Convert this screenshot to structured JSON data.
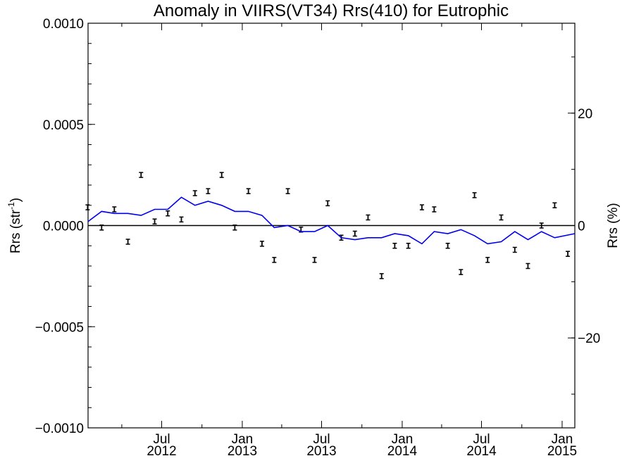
{
  "chart_data": {
    "type": "scatter",
    "title": "Anomaly in VIIRS(VT34) Rrs(410) for Eutrophic",
    "ylabel_left_prefix": "Rrs (str",
    "ylabel_left_exponent": "-1",
    "ylabel_left_suffix": ")",
    "ylabel_right": "Rrs (%)",
    "ylim_left": [
      -0.001,
      0.001
    ],
    "ylim_right": [
      -36,
      36
    ],
    "yticks_left": [
      {
        "value": 0.001,
        "label": "0.0010"
      },
      {
        "value": 0.0005,
        "label": "0.0005"
      },
      {
        "value": 0.0,
        "label": "0.0000"
      },
      {
        "value": -0.0005,
        "label": "−0.0005"
      },
      {
        "value": -0.001,
        "label": "−0.0010"
      }
    ],
    "yticks_right": [
      {
        "value": 20,
        "label": "20"
      },
      {
        "value": 0,
        "label": "0"
      },
      {
        "value": -20,
        "label": "−20"
      }
    ],
    "xlim": [
      "2012-01-15",
      "2015-01-30"
    ],
    "xticks": [
      {
        "date": "2012-07-01",
        "month": "Jul",
        "year": "2012"
      },
      {
        "date": "2013-01-01",
        "month": "Jan",
        "year": "2013"
      },
      {
        "date": "2013-07-01",
        "month": "Jul",
        "year": "2013"
      },
      {
        "date": "2014-01-01",
        "month": "Jan",
        "year": "2014"
      },
      {
        "date": "2014-07-01",
        "month": "Jul",
        "year": "2014"
      },
      {
        "date": "2015-01-01",
        "month": "Jan",
        "year": "2015"
      }
    ],
    "series": [
      {
        "style": "errorbar",
        "color": "#000000",
        "points": [
          {
            "x": "2012-01-14",
            "y": 9e-05
          },
          {
            "x": "2012-02-15",
            "y": -1e-05
          },
          {
            "x": "2012-03-15",
            "y": 8e-05
          },
          {
            "x": "2012-04-15",
            "y": -8e-05
          },
          {
            "x": "2012-05-15",
            "y": 0.00025
          },
          {
            "x": "2012-06-15",
            "y": 2e-05
          },
          {
            "x": "2012-07-15",
            "y": 6e-05
          },
          {
            "x": "2012-08-15",
            "y": 3e-05
          },
          {
            "x": "2012-09-15",
            "y": 0.00016
          },
          {
            "x": "2012-10-15",
            "y": 0.00017
          },
          {
            "x": "2012-11-15",
            "y": 0.00025
          },
          {
            "x": "2012-12-15",
            "y": -1e-05
          },
          {
            "x": "2013-01-15",
            "y": 0.00017
          },
          {
            "x": "2013-02-15",
            "y": -9e-05
          },
          {
            "x": "2013-03-15",
            "y": -0.00017
          },
          {
            "x": "2013-04-15",
            "y": 0.00017
          },
          {
            "x": "2013-05-15",
            "y": -2e-05
          },
          {
            "x": "2013-06-15",
            "y": -0.00017
          },
          {
            "x": "2013-07-15",
            "y": 0.00011
          },
          {
            "x": "2013-08-15",
            "y": -6e-05
          },
          {
            "x": "2013-09-15",
            "y": -4e-05
          },
          {
            "x": "2013-10-15",
            "y": 4e-05
          },
          {
            "x": "2013-11-15",
            "y": -0.00025
          },
          {
            "x": "2013-12-15",
            "y": -0.0001
          },
          {
            "x": "2014-01-15",
            "y": -0.0001
          },
          {
            "x": "2014-02-15",
            "y": 9e-05
          },
          {
            "x": "2014-03-15",
            "y": 8e-05
          },
          {
            "x": "2014-04-15",
            "y": -0.0001
          },
          {
            "x": "2014-05-15",
            "y": -0.00023
          },
          {
            "x": "2014-06-15",
            "y": 0.00015
          },
          {
            "x": "2014-07-15",
            "y": -0.00017
          },
          {
            "x": "2014-08-15",
            "y": 4e-05
          },
          {
            "x": "2014-09-15",
            "y": -0.00012
          },
          {
            "x": "2014-10-15",
            "y": -0.0002
          },
          {
            "x": "2014-11-15",
            "y": 0.0
          },
          {
            "x": "2014-12-15",
            "y": 0.0001
          },
          {
            "x": "2015-01-14",
            "y": -0.00014
          }
        ]
      },
      {
        "style": "line",
        "color": "#0000ee",
        "points": [
          {
            "x": "2012-01-15",
            "y": 2e-05
          },
          {
            "x": "2012-02-15",
            "y": 7e-05
          },
          {
            "x": "2012-03-15",
            "y": 6e-05
          },
          {
            "x": "2012-04-15",
            "y": 6e-05
          },
          {
            "x": "2012-05-15",
            "y": 5e-05
          },
          {
            "x": "2012-06-15",
            "y": 8e-05
          },
          {
            "x": "2012-07-15",
            "y": 8e-05
          },
          {
            "x": "2012-08-15",
            "y": 0.00014
          },
          {
            "x": "2012-09-15",
            "y": 0.0001
          },
          {
            "x": "2012-10-15",
            "y": 0.00012
          },
          {
            "x": "2012-11-15",
            "y": 0.0001
          },
          {
            "x": "2012-12-15",
            "y": 7e-05
          },
          {
            "x": "2013-01-15",
            "y": 7e-05
          },
          {
            "x": "2013-02-15",
            "y": 5e-05
          },
          {
            "x": "2013-03-15",
            "y": -1e-05
          },
          {
            "x": "2013-04-15",
            "y": 0.0
          },
          {
            "x": "2013-05-15",
            "y": -3e-05
          },
          {
            "x": "2013-06-15",
            "y": -3e-05
          },
          {
            "x": "2013-07-15",
            "y": 0.0
          },
          {
            "x": "2013-08-15",
            "y": -6e-05
          },
          {
            "x": "2013-09-15",
            "y": -7e-05
          },
          {
            "x": "2013-10-15",
            "y": -6e-05
          },
          {
            "x": "2013-11-15",
            "y": -6e-05
          },
          {
            "x": "2013-12-15",
            "y": -4e-05
          },
          {
            "x": "2014-01-15",
            "y": -5e-05
          },
          {
            "x": "2014-02-15",
            "y": -9e-05
          },
          {
            "x": "2014-03-15",
            "y": -3e-05
          },
          {
            "x": "2014-04-15",
            "y": -4e-05
          },
          {
            "x": "2014-05-15",
            "y": -2e-05
          },
          {
            "x": "2014-06-15",
            "y": -5e-05
          },
          {
            "x": "2014-07-15",
            "y": -9e-05
          },
          {
            "x": "2014-08-15",
            "y": -8e-05
          },
          {
            "x": "2014-09-15",
            "y": -3e-05
          },
          {
            "x": "2014-10-15",
            "y": -7e-05
          },
          {
            "x": "2014-11-15",
            "y": -3e-05
          },
          {
            "x": "2014-12-15",
            "y": -6e-05
          },
          {
            "x": "2015-01-30",
            "y": -4e-05
          }
        ]
      }
    ],
    "zero_line": true,
    "grid": false
  }
}
